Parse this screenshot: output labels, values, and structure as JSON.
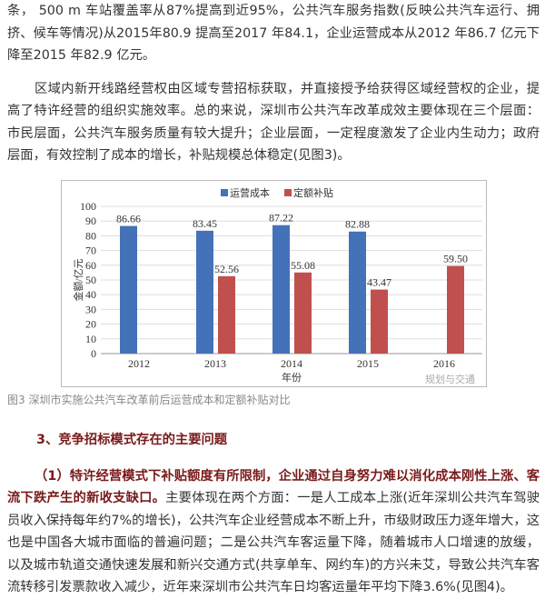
{
  "paragraphs": {
    "p1": "条， 500 m 车站覆盖率从87%提高到近95%，公共汽车服务指数(反映公共汽车运行、拥挤、候车等情况)从2015年80.9 提高至2017 年84.1，企业运营成本从2012 年86.7 亿元下降至2015 年82.9 亿元。",
    "p2": "区域内新开线路经营权由区域专营招标获取，并直接授予给获得区域经营权的企业，提高了特许经营的组织实施效率。总的来说，深圳市公共汽车改革成效主要体现在三个层面：市民层面，公共汽车服务质量有较大提升；企业层面，一定程度激发了企业内生动力；政府层面，有效控制了成本的增长，补贴规模总体稳定(见图3)。",
    "caption": "图3 深圳市实施公共汽车改革前后运营成本和定额补贴对比",
    "heading": "3、竞争招标模式存在的主要问题",
    "p3_bold": "（1）特许经营模式下补贴额度有所限制，企业通过自身努力难以消化成本刚性上涨、客流下跌产生的新收支缺口。",
    "p3_rest": "主要体现在两个方面：一是人工成本上涨(近年深圳公共汽车驾驶员收入保持每年约7%的增长)，公共汽车企业经营成本不断上升，市级财政压力逐年增大，这也是中国各大城市面临的普遍问题；二是公共汽车客运量下降，随着城市人口增速的放缓，以及城市轨道交通快速发展和新兴交通方式(共享单车、网约车)的方兴未艾，导致公共汽车客流转移引发票款收入减少，近年来深圳市公共汽车日均客运量年平均下降3.6%(见图4)。"
  },
  "watermark": "规划与交通",
  "chart_data": {
    "type": "bar",
    "categories": [
      "2012",
      "2013",
      "2014",
      "2015",
      "2016"
    ],
    "series": [
      {
        "name": "运营成本",
        "values": [
          86.66,
          83.45,
          87.22,
          82.88,
          null
        ],
        "labels": [
          "86.66",
          "83.45",
          "87.22",
          "82.88",
          ""
        ],
        "color": "#4472b8"
      },
      {
        "name": "定额补贴",
        "values": [
          null,
          52.56,
          55.08,
          43.47,
          59.5
        ],
        "labels": [
          "",
          "52.56",
          "55.08",
          "43.47",
          "59.50"
        ],
        "color": "#c0504d"
      }
    ],
    "xlabel": "年份",
    "ylabel": "金额/亿元",
    "ylim": [
      0,
      100
    ],
    "yticks": [
      "0",
      "10",
      "20",
      "30",
      "40",
      "50",
      "60",
      "70",
      "80",
      "90",
      "100"
    ],
    "grid": true,
    "legend": "top"
  }
}
